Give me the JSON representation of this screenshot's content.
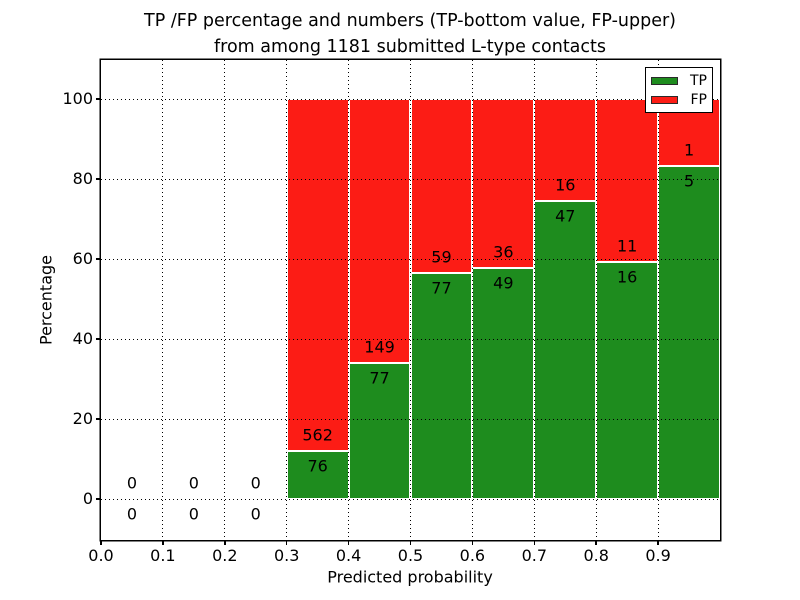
{
  "chart_data": {
    "type": "bar",
    "stacked": true,
    "title_lines": [
      "TP /FP percentage and numbers (TP-bottom value, FP-upper)",
      "from among 1181 submitted L-type contacts"
    ],
    "total_submitted": 1181,
    "xlabel": "Predicted probability",
    "ylabel": "Percentage",
    "xlim": [
      0.0,
      1.0
    ],
    "ylim_percent": [
      -10.25,
      109.75
    ],
    "grid": "dotted",
    "bar_total_percent": 100,
    "xticks": [
      {
        "v": 0.0,
        "label": "0.0"
      },
      {
        "v": 0.1,
        "label": "0.1"
      },
      {
        "v": 0.2,
        "label": "0.2"
      },
      {
        "v": 0.3,
        "label": "0.3"
      },
      {
        "v": 0.4,
        "label": "0.4"
      },
      {
        "v": 0.5,
        "label": "0.5"
      },
      {
        "v": 0.6,
        "label": "0.6"
      },
      {
        "v": 0.7,
        "label": "0.7"
      },
      {
        "v": 0.8,
        "label": "0.8"
      },
      {
        "v": 0.9,
        "label": "0.9"
      }
    ],
    "yticks": [
      {
        "v": 0,
        "label": "0"
      },
      {
        "v": 20,
        "label": "20"
      },
      {
        "v": 40,
        "label": "40"
      },
      {
        "v": 60,
        "label": "60"
      },
      {
        "v": 80,
        "label": "80"
      },
      {
        "v": 100,
        "label": "100"
      }
    ],
    "legend": {
      "position": "upper-right",
      "entries": [
        {
          "label": "TP",
          "color": "#1e8c1e"
        },
        {
          "label": "FP",
          "color": "#fc1c15"
        }
      ]
    },
    "bins": [
      {
        "x0": 0.0,
        "x1": 0.1,
        "tp": 0,
        "fp": 0
      },
      {
        "x0": 0.1,
        "x1": 0.2,
        "tp": 0,
        "fp": 0
      },
      {
        "x0": 0.2,
        "x1": 0.3,
        "tp": 0,
        "fp": 0
      },
      {
        "x0": 0.3,
        "x1": 0.4,
        "tp": 76,
        "fp": 562
      },
      {
        "x0": 0.4,
        "x1": 0.5,
        "tp": 77,
        "fp": 149
      },
      {
        "x0": 0.5,
        "x1": 0.6,
        "tp": 77,
        "fp": 59
      },
      {
        "x0": 0.6,
        "x1": 0.7,
        "tp": 49,
        "fp": 36
      },
      {
        "x0": 0.7,
        "x1": 0.8,
        "tp": 47,
        "fp": 16
      },
      {
        "x0": 0.8,
        "x1": 0.9,
        "tp": 16,
        "fp": 11
      },
      {
        "x0": 0.9,
        "x1": 1.0,
        "tp": 5,
        "fp": 1
      }
    ]
  }
}
